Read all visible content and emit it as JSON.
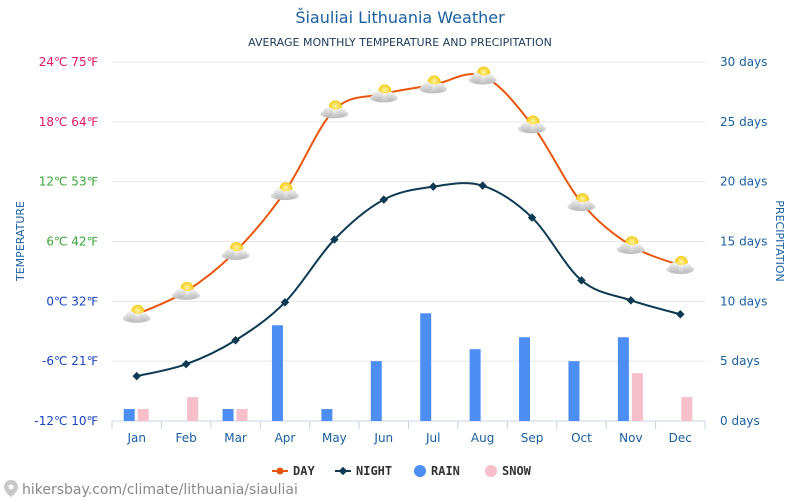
{
  "chart_data": {
    "type": "line",
    "title": "Šiauliai Lithuania Weather",
    "subtitle": "AVERAGE MONTHLY TEMPERATURE AND PRECIPITATION",
    "ylabel_left": "TEMPERATURE",
    "ylabel_right": "PRECIPITATION",
    "categories": [
      "Jan",
      "Feb",
      "Mar",
      "Apr",
      "May",
      "Jun",
      "Jul",
      "Aug",
      "Sep",
      "Oct",
      "Nov",
      "Dec"
    ],
    "left_axis": {
      "ylim": [
        -12,
        24
      ],
      "ticks": [
        {
          "value": 24,
          "label": "24℃ 75℉",
          "color": "#e0185a"
        },
        {
          "value": 18,
          "label": "18℃ 64℉",
          "color": "#e0185a"
        },
        {
          "value": 12,
          "label": "12℃ 53℉",
          "color": "#3aa63a"
        },
        {
          "value": 6,
          "label": "6℃ 42℉",
          "color": "#3aa63a"
        },
        {
          "value": 0,
          "label": "0℃ 32℉",
          "color": "#1a44c0"
        },
        {
          "value": -6,
          "label": "-6℃ 21℉",
          "color": "#1a44c0"
        },
        {
          "value": -12,
          "label": "-12℃ 10℉",
          "color": "#1a44c0"
        }
      ]
    },
    "right_axis": {
      "ylim": [
        0,
        30
      ],
      "ticks": [
        {
          "value": 30,
          "label": "30 days"
        },
        {
          "value": 25,
          "label": "25 days"
        },
        {
          "value": 20,
          "label": "20 days"
        },
        {
          "value": 15,
          "label": "15 days"
        },
        {
          "value": 10,
          "label": "10 days"
        },
        {
          "value": 5,
          "label": "5 days"
        },
        {
          "value": 0,
          "label": "0 days"
        }
      ]
    },
    "series": [
      {
        "name": "DAY",
        "type": "line",
        "axis": "left",
        "color": "#e8560c",
        "values": [
          -1.3,
          1.0,
          5.0,
          11.0,
          19.2,
          20.8,
          21.7,
          22.6,
          17.7,
          9.9,
          5.6,
          3.6
        ]
      },
      {
        "name": "NIGHT",
        "type": "line",
        "axis": "left",
        "color": "#0d3a52",
        "values": [
          -7.5,
          -6.3,
          -3.9,
          -0.1,
          6.2,
          10.2,
          11.5,
          11.6,
          8.4,
          2.1,
          0.1,
          -1.3
        ]
      },
      {
        "name": "RAIN",
        "type": "bar",
        "axis": "right",
        "color": "#4d8ef5",
        "values": [
          1,
          0,
          1,
          8,
          1,
          5,
          9,
          6,
          7,
          5,
          7,
          0
        ]
      },
      {
        "name": "SNOW",
        "type": "bar",
        "axis": "right",
        "color": "#f7bfc9",
        "values": [
          1,
          2,
          1,
          0,
          0,
          0,
          0,
          0,
          0,
          0,
          4,
          2
        ]
      }
    ],
    "grid": true,
    "legend_position": "bottom"
  },
  "weather_icon": "sun-behind-cloud-icon",
  "credit_icon": "location-pin-icon",
  "credit_text": "hikersbay.com/climate/lithuania/siauliai"
}
